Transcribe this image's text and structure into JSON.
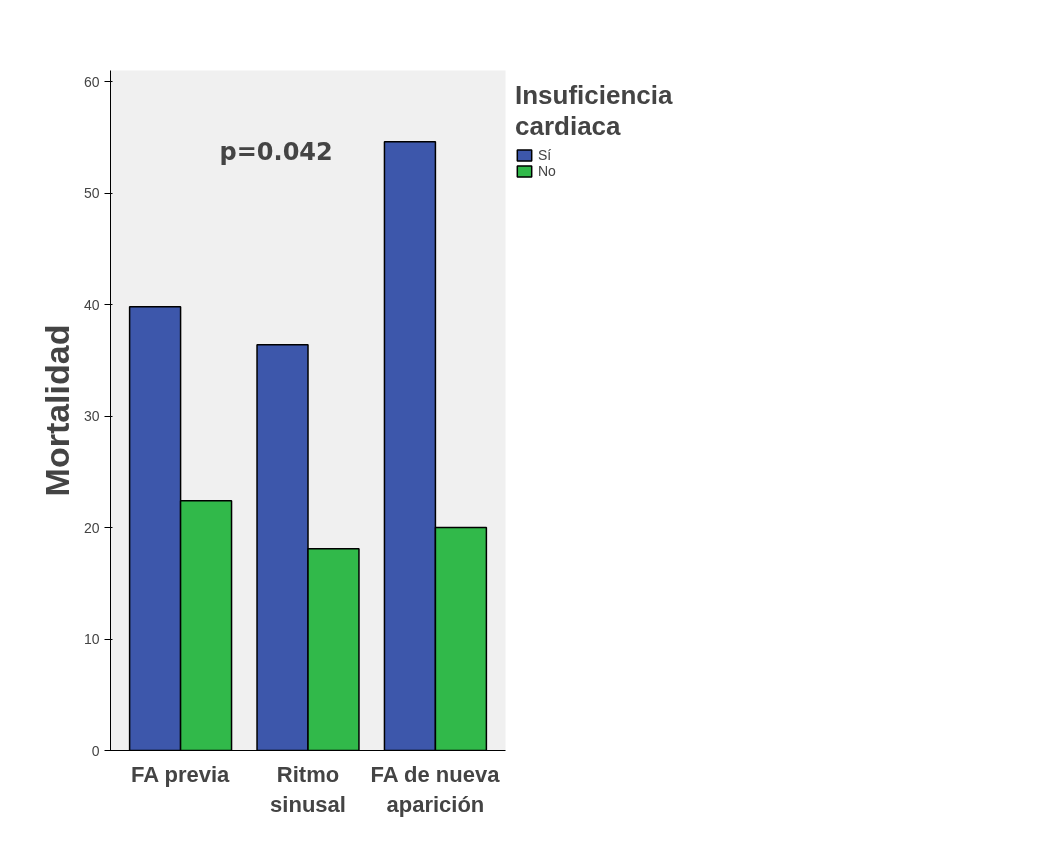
{
  "chart_data": {
    "type": "bar",
    "ylabel": "Mortalidad",
    "legend_title": "Insuficiencia cardiaca",
    "categories": [
      "FA previa",
      "Ritmo sinusal",
      "FA de nueva aparición"
    ],
    "series": [
      {
        "name": "Sí",
        "color": "#3d57ab",
        "values": [
          39.8,
          36.4,
          54.6
        ]
      },
      {
        "name": "No",
        "color": "#31b94a",
        "values": [
          22.4,
          18.1,
          20.0
        ]
      }
    ],
    "ylim": [
      0,
      61
    ],
    "yticks": [
      0,
      10,
      20,
      30,
      40,
      50,
      60
    ],
    "annotations": [
      "p=0.042"
    ],
    "grid": false,
    "legend": "top right"
  }
}
